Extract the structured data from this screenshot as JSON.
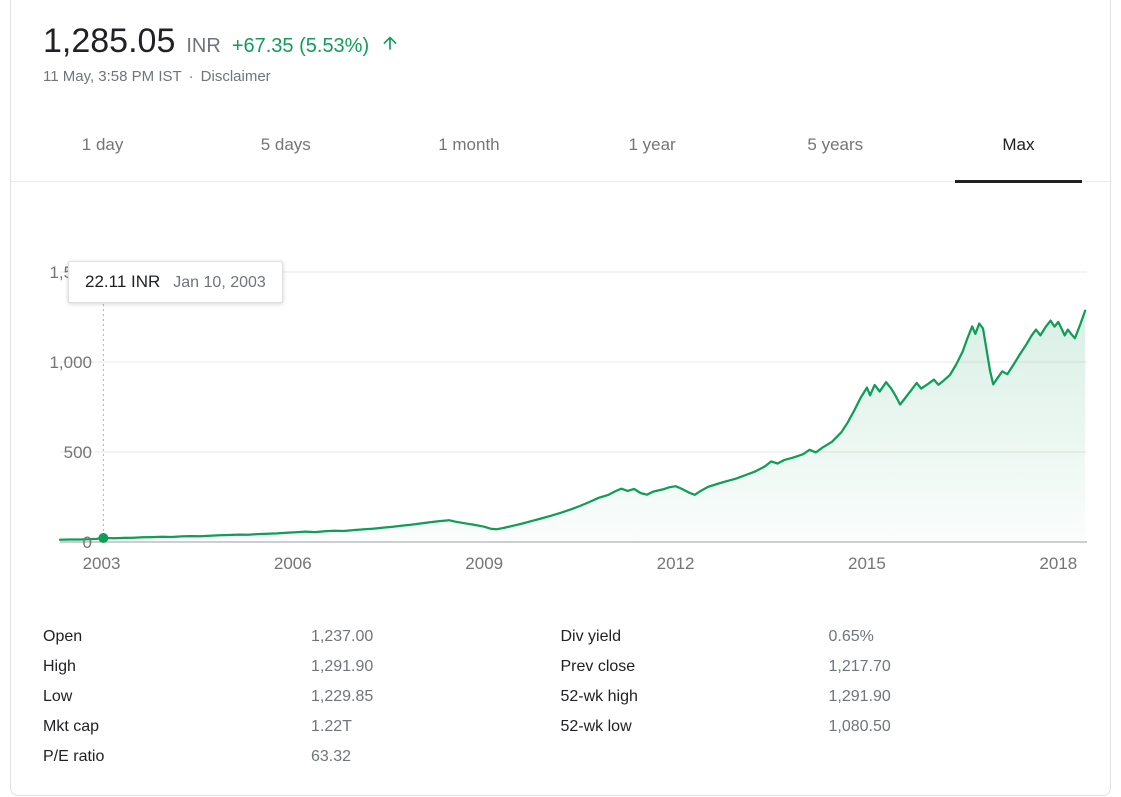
{
  "header": {
    "price": "1,285.05",
    "currency": "INR",
    "change": "+67.35 (5.53%)",
    "timestamp": "11 May, 3:58 PM IST",
    "separator": "·",
    "disclaimer": "Disclaimer"
  },
  "tabs": [
    {
      "label": "1 day",
      "active": false
    },
    {
      "label": "5 days",
      "active": false
    },
    {
      "label": "1 month",
      "active": false
    },
    {
      "label": "1 year",
      "active": false
    },
    {
      "label": "5 years",
      "active": false
    },
    {
      "label": "Max",
      "active": true
    }
  ],
  "tooltip": {
    "value": "22.11 INR",
    "date": "Jan 10, 2003"
  },
  "chart_data": {
    "type": "area",
    "grid": true,
    "line_color": "#0f9d58",
    "x_ticks": [
      2003,
      2006,
      2009,
      2012,
      2015,
      2018
    ],
    "y_ticks": [
      0,
      500,
      1000,
      1500
    ],
    "y_tick_labels": [
      "0",
      "500",
      "1,000",
      "1,500"
    ],
    "x_range": [
      2002.35,
      2018.45
    ],
    "y_range": [
      0,
      1500
    ],
    "marker": {
      "x": 2003.03,
      "value": 22.11
    },
    "series": [
      {
        "name": "price_inr",
        "points": [
          [
            2002.35,
            13
          ],
          [
            2002.5,
            14
          ],
          [
            2002.65,
            14
          ],
          [
            2002.8,
            15
          ],
          [
            2002.92,
            17
          ],
          [
            2003.03,
            22.11
          ],
          [
            2003.2,
            21
          ],
          [
            2003.35,
            23
          ],
          [
            2003.5,
            24
          ],
          [
            2003.65,
            26
          ],
          [
            2003.8,
            27
          ],
          [
            2003.95,
            29
          ],
          [
            2004.1,
            28
          ],
          [
            2004.25,
            31
          ],
          [
            2004.4,
            33
          ],
          [
            2004.55,
            32
          ],
          [
            2004.7,
            35
          ],
          [
            2004.85,
            37
          ],
          [
            2005.0,
            39
          ],
          [
            2005.15,
            41
          ],
          [
            2005.3,
            40
          ],
          [
            2005.45,
            44
          ],
          [
            2005.6,
            46
          ],
          [
            2005.75,
            48
          ],
          [
            2005.9,
            51
          ],
          [
            2006.05,
            54
          ],
          [
            2006.2,
            58
          ],
          [
            2006.35,
            55
          ],
          [
            2006.5,
            60
          ],
          [
            2006.65,
            63
          ],
          [
            2006.8,
            61
          ],
          [
            2006.95,
            66
          ],
          [
            2007.1,
            70
          ],
          [
            2007.25,
            74
          ],
          [
            2007.4,
            79
          ],
          [
            2007.55,
            84
          ],
          [
            2007.7,
            90
          ],
          [
            2007.85,
            96
          ],
          [
            2008.0,
            103
          ],
          [
            2008.15,
            110
          ],
          [
            2008.3,
            116
          ],
          [
            2008.45,
            121
          ],
          [
            2008.55,
            113
          ],
          [
            2008.7,
            104
          ],
          [
            2008.85,
            95
          ],
          [
            2009.0,
            85
          ],
          [
            2009.1,
            74
          ],
          [
            2009.2,
            71
          ],
          [
            2009.3,
            78
          ],
          [
            2009.45,
            90
          ],
          [
            2009.6,
            103
          ],
          [
            2009.75,
            117
          ],
          [
            2009.9,
            131
          ],
          [
            2010.05,
            146
          ],
          [
            2010.2,
            162
          ],
          [
            2010.35,
            180
          ],
          [
            2010.5,
            200
          ],
          [
            2010.65,
            222
          ],
          [
            2010.8,
            246
          ],
          [
            2010.95,
            262
          ],
          [
            2011.05,
            281
          ],
          [
            2011.15,
            296
          ],
          [
            2011.25,
            284
          ],
          [
            2011.35,
            295
          ],
          [
            2011.45,
            272
          ],
          [
            2011.55,
            263
          ],
          [
            2011.65,
            280
          ],
          [
            2011.8,
            292
          ],
          [
            2011.9,
            304
          ],
          [
            2012.0,
            310
          ],
          [
            2012.1,
            295
          ],
          [
            2012.2,
            276
          ],
          [
            2012.3,
            262
          ],
          [
            2012.4,
            285
          ],
          [
            2012.5,
            305
          ],
          [
            2012.65,
            322
          ],
          [
            2012.8,
            338
          ],
          [
            2012.95,
            352
          ],
          [
            2013.1,
            372
          ],
          [
            2013.25,
            392
          ],
          [
            2013.4,
            420
          ],
          [
            2013.5,
            448
          ],
          [
            2013.6,
            436
          ],
          [
            2013.7,
            455
          ],
          [
            2013.85,
            470
          ],
          [
            2014.0,
            488
          ],
          [
            2014.1,
            512
          ],
          [
            2014.2,
            498
          ],
          [
            2014.3,
            524
          ],
          [
            2014.45,
            556
          ],
          [
            2014.6,
            610
          ],
          [
            2014.7,
            665
          ],
          [
            2014.8,
            730
          ],
          [
            2014.9,
            800
          ],
          [
            2015.0,
            858
          ],
          [
            2015.05,
            815
          ],
          [
            2015.12,
            872
          ],
          [
            2015.2,
            836
          ],
          [
            2015.3,
            888
          ],
          [
            2015.38,
            852
          ],
          [
            2015.45,
            812
          ],
          [
            2015.52,
            764
          ],
          [
            2015.6,
            800
          ],
          [
            2015.7,
            846
          ],
          [
            2015.78,
            884
          ],
          [
            2015.85,
            852
          ],
          [
            2015.95,
            876
          ],
          [
            2016.05,
            902
          ],
          [
            2016.12,
            874
          ],
          [
            2016.2,
            896
          ],
          [
            2016.3,
            928
          ],
          [
            2016.4,
            986
          ],
          [
            2016.5,
            1058
          ],
          [
            2016.58,
            1136
          ],
          [
            2016.65,
            1198
          ],
          [
            2016.7,
            1156
          ],
          [
            2016.76,
            1214
          ],
          [
            2016.82,
            1186
          ],
          [
            2016.87,
            1080
          ],
          [
            2016.93,
            952
          ],
          [
            2016.98,
            876
          ],
          [
            2017.05,
            912
          ],
          [
            2017.12,
            948
          ],
          [
            2017.2,
            932
          ],
          [
            2017.3,
            986
          ],
          [
            2017.4,
            1044
          ],
          [
            2017.5,
            1098
          ],
          [
            2017.58,
            1146
          ],
          [
            2017.65,
            1180
          ],
          [
            2017.72,
            1148
          ],
          [
            2017.8,
            1194
          ],
          [
            2017.88,
            1230
          ],
          [
            2017.94,
            1196
          ],
          [
            2018.0,
            1222
          ],
          [
            2018.05,
            1186
          ],
          [
            2018.1,
            1148
          ],
          [
            2018.15,
            1180
          ],
          [
            2018.2,
            1156
          ],
          [
            2018.26,
            1132
          ],
          [
            2018.3,
            1168
          ],
          [
            2018.35,
            1214
          ],
          [
            2018.42,
            1285.05
          ]
        ]
      }
    ]
  },
  "stats": {
    "left": [
      {
        "label": "Open",
        "value": "1,237.00"
      },
      {
        "label": "High",
        "value": "1,291.90"
      },
      {
        "label": "Low",
        "value": "1,229.85"
      },
      {
        "label": "Mkt cap",
        "value": "1.22T"
      },
      {
        "label": "P/E ratio",
        "value": "63.32"
      }
    ],
    "right": [
      {
        "label": "Div yield",
        "value": "0.65%"
      },
      {
        "label": "Prev close",
        "value": "1,217.70"
      },
      {
        "label": "52-wk high",
        "value": "1,291.90"
      },
      {
        "label": "52-wk low",
        "value": "1,080.50"
      }
    ]
  },
  "colors": {
    "green": "#0f9d58",
    "dark_text": "#202124",
    "gray_text": "#70757a",
    "border": "#dfe1e5",
    "gridline": "#e8e8e8",
    "axis_line": "#9aa0a6",
    "dashed_line": "#b0b0b0"
  }
}
